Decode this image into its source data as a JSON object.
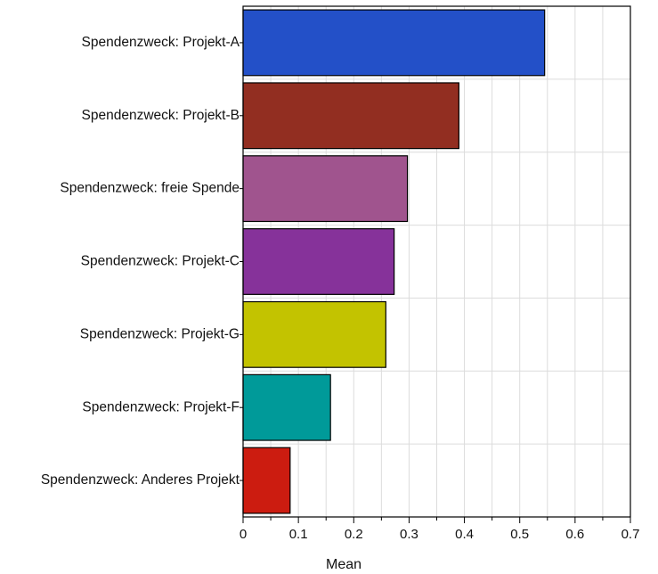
{
  "chart_data": {
    "type": "bar",
    "orientation": "horizontal",
    "xlabel": "Mean",
    "ylabel": "",
    "xlim": [
      0,
      0.7
    ],
    "xticks": [
      0,
      0.1,
      0.2,
      0.3,
      0.4,
      0.5,
      0.6,
      0.7
    ],
    "xtick_labels": [
      "0",
      "0.1",
      "0.2",
      "0.3",
      "0.4",
      "0.5",
      "0.6",
      "0.7"
    ],
    "grid": true,
    "categories": [
      "Spendenzweck: Projekt-A",
      "Spendenzweck: Projekt-B",
      "Spendenzweck: freie Spende",
      "Spendenzweck: Projekt-C",
      "Spendenzweck: Projekt-G",
      "Spendenzweck: Projekt-F",
      "Spendenzweck: Anderes Projekt"
    ],
    "values": [
      0.545,
      0.39,
      0.297,
      0.273,
      0.258,
      0.158,
      0.085
    ],
    "colors": [
      "#2350c8",
      "#922e21",
      "#a0548e",
      "#86329a",
      "#c3c300",
      "#009a99",
      "#cc1c10"
    ]
  }
}
